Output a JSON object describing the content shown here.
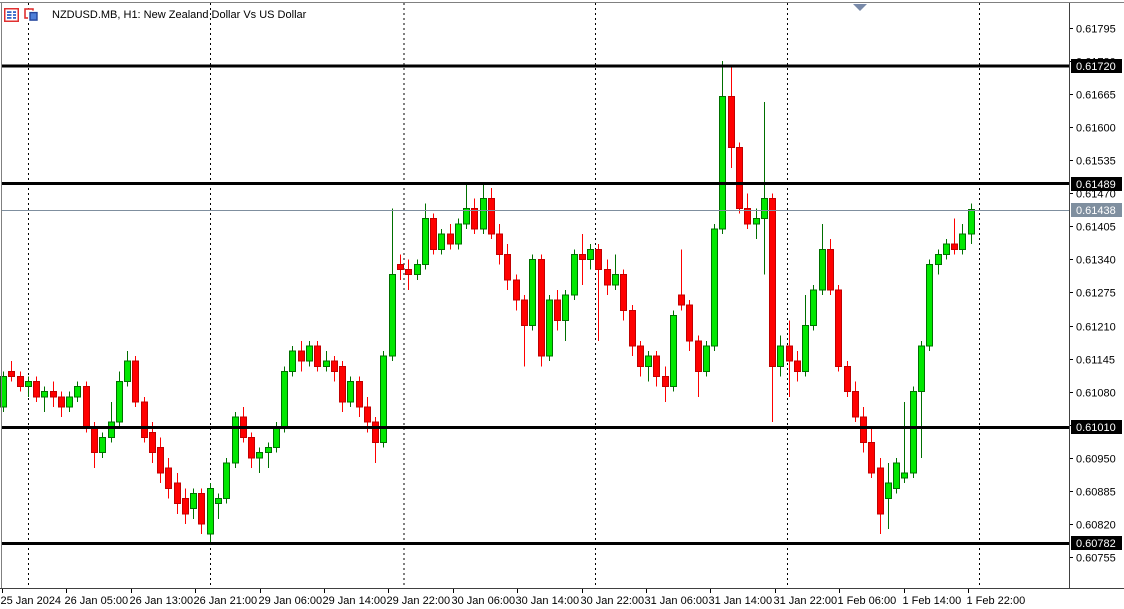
{
  "header": {
    "symbol_title": "NZDUSD.MB, H1: New Zealand Dollar Vs US Dollar",
    "icons": [
      "quotes-list-icon",
      "chart-windows-icon"
    ]
  },
  "colors": {
    "background": "#FFFFFF",
    "up_fill": "#00E800",
    "up_border": "#006F00",
    "down_fill": "#FF0000",
    "down_border": "#C00000",
    "level_line": "#000000",
    "level_tag_bg": "#000000",
    "level_tag_text": "#FFFFFF",
    "bid_line": "#7F8F9F",
    "bid_tag_bg": "#7F8F9F",
    "bid_tag_text": "#FFFFFF",
    "axis_text": "#000000",
    "separator": "#000000",
    "marker": "#7889A8",
    "border": "#808080"
  },
  "chart_data": {
    "type": "candlestick",
    "symbol": "NZDUSD.MB",
    "timeframe": "H1",
    "description": "New Zealand Dollar Vs US Dollar",
    "bars_visible": 118,
    "price_axis": {
      "ticks": [
        0.61795,
        0.6173,
        0.61665,
        0.616,
        0.61535,
        0.6147,
        0.61405,
        0.6134,
        0.61275,
        0.6121,
        0.61145,
        0.6108,
        0.61015,
        0.6095,
        0.60885,
        0.6082,
        0.60755
      ],
      "max_visible": 0.6182,
      "min_visible": 0.60715
    },
    "time_axis": {
      "labels": [
        "25 Jan 2024",
        "26 Jan 05:00",
        "26 Jan 13:00",
        "26 Jan 21:00",
        "29 Jan 06:00",
        "29 Jan 14:00",
        "29 Jan 22:00",
        "30 Jan 06:00",
        "30 Jan 14:00",
        "30 Jan 22:00",
        "31 Jan 06:00",
        "31 Jan 14:00",
        "31 Jan 22:00",
        "1 Feb 06:00",
        "1 Feb 14:00",
        "1 Feb 22:00"
      ]
    },
    "levels": [
      {
        "price": 0.6172,
        "label": "0.61720"
      },
      {
        "price": 0.61489,
        "label": "0.61489"
      },
      {
        "price": 0.6101,
        "label": "0.61010"
      },
      {
        "price": 0.60782,
        "label": "0.60782"
      }
    ],
    "bid": {
      "price": 0.61438,
      "label": "0.61438"
    },
    "day_separators": {
      "dates": [
        "26 Jan",
        "29 Jan",
        "30 Jan",
        "31 Jan",
        "1 Feb",
        "2 Feb"
      ],
      "bar_positions": [
        3.0,
        25.0,
        48.4,
        71.6,
        94.8,
        118.0
      ]
    },
    "candles": [
      [
        0.6105,
        0.6112,
        0.6104,
        0.6111
      ],
      [
        0.6112,
        0.6114,
        0.611,
        0.6111
      ],
      [
        0.6111,
        0.6112,
        0.6108,
        0.6109
      ],
      [
        0.6109,
        0.6111,
        0.6107,
        0.611
      ],
      [
        0.611,
        0.6111,
        0.6106,
        0.6107
      ],
      [
        0.6107,
        0.6109,
        0.6104,
        0.6108
      ],
      [
        0.6108,
        0.611,
        0.6105,
        0.6107
      ],
      [
        0.6107,
        0.6108,
        0.6103,
        0.6105
      ],
      [
        0.6105,
        0.6108,
        0.6104,
        0.6107
      ],
      [
        0.6107,
        0.611,
        0.6106,
        0.6109
      ],
      [
        0.6109,
        0.611,
        0.61,
        0.6101
      ],
      [
        0.6101,
        0.6102,
        0.6093,
        0.6096
      ],
      [
        0.6096,
        0.61,
        0.6095,
        0.6099
      ],
      [
        0.6099,
        0.6106,
        0.6098,
        0.6102
      ],
      [
        0.6102,
        0.6112,
        0.6101,
        0.611
      ],
      [
        0.611,
        0.6116,
        0.6109,
        0.6114
      ],
      [
        0.6114,
        0.6115,
        0.6105,
        0.6106
      ],
      [
        0.6106,
        0.6107,
        0.6098,
        0.6099
      ],
      [
        0.61,
        0.6102,
        0.6094,
        0.6096
      ],
      [
        0.6097,
        0.6099,
        0.609,
        0.6092
      ],
      [
        0.6093,
        0.6095,
        0.6087,
        0.6089
      ],
      [
        0.609,
        0.6092,
        0.6084,
        0.6086
      ],
      [
        0.6087,
        0.6089,
        0.6082,
        0.6084
      ],
      [
        0.6085,
        0.6089,
        0.6083,
        0.6088
      ],
      [
        0.6088,
        0.6089,
        0.608,
        0.6082
      ],
      [
        0.608,
        0.609,
        0.6078,
        0.6089
      ],
      [
        0.6086,
        0.6088,
        0.6083,
        0.6087
      ],
      [
        0.6087,
        0.6095,
        0.6086,
        0.6094
      ],
      [
        0.6094,
        0.6104,
        0.6093,
        0.6103
      ],
      [
        0.6103,
        0.6105,
        0.6098,
        0.6099
      ],
      [
        0.6099,
        0.61,
        0.6093,
        0.6095
      ],
      [
        0.6095,
        0.6097,
        0.6092,
        0.6096
      ],
      [
        0.6096,
        0.6098,
        0.6093,
        0.6097
      ],
      [
        0.6097,
        0.6102,
        0.6096,
        0.6101
      ],
      [
        0.6101,
        0.6113,
        0.61,
        0.6112
      ],
      [
        0.6112,
        0.6117,
        0.6111,
        0.6116
      ],
      [
        0.6116,
        0.6118,
        0.6112,
        0.6114
      ],
      [
        0.6114,
        0.6118,
        0.6113,
        0.6117
      ],
      [
        0.6117,
        0.6118,
        0.6112,
        0.6113
      ],
      [
        0.6113,
        0.6116,
        0.6112,
        0.6114
      ],
      [
        0.6114,
        0.6115,
        0.611,
        0.6112
      ],
      [
        0.6113,
        0.6114,
        0.6104,
        0.6106
      ],
      [
        0.6106,
        0.6111,
        0.6105,
        0.611
      ],
      [
        0.611,
        0.6111,
        0.6103,
        0.6105
      ],
      [
        0.6105,
        0.6107,
        0.61,
        0.6102
      ],
      [
        0.6102,
        0.6103,
        0.6094,
        0.6098
      ],
      [
        0.6098,
        0.6116,
        0.6097,
        0.6115
      ],
      [
        0.6115,
        0.6144,
        0.6114,
        0.6131
      ],
      [
        0.6133,
        0.6135,
        0.613,
        0.6132
      ],
      [
        0.6132,
        0.6134,
        0.6128,
        0.6131
      ],
      [
        0.6131,
        0.6134,
        0.613,
        0.6133
      ],
      [
        0.6133,
        0.6145,
        0.6132,
        0.6142
      ],
      [
        0.6142,
        0.6143,
        0.6135,
        0.6136
      ],
      [
        0.6136,
        0.614,
        0.6135,
        0.6139
      ],
      [
        0.6139,
        0.6141,
        0.6136,
        0.6137
      ],
      [
        0.6137,
        0.6142,
        0.6136,
        0.6141
      ],
      [
        0.6141,
        0.6149,
        0.614,
        0.6144
      ],
      [
        0.6144,
        0.6146,
        0.6139,
        0.614
      ],
      [
        0.614,
        0.6149,
        0.6139,
        0.6146
      ],
      [
        0.6146,
        0.6148,
        0.6138,
        0.6139
      ],
      [
        0.6139,
        0.6141,
        0.6133,
        0.6135
      ],
      [
        0.6135,
        0.6137,
        0.6128,
        0.613
      ],
      [
        0.613,
        0.6131,
        0.6124,
        0.6126
      ],
      [
        0.6126,
        0.6127,
        0.6113,
        0.6121
      ],
      [
        0.6121,
        0.6135,
        0.612,
        0.6134
      ],
      [
        0.6134,
        0.6135,
        0.6113,
        0.6115
      ],
      [
        0.6115,
        0.6127,
        0.6114,
        0.6126
      ],
      [
        0.6126,
        0.6128,
        0.612,
        0.6122
      ],
      [
        0.6122,
        0.6128,
        0.6118,
        0.6127
      ],
      [
        0.6127,
        0.6136,
        0.6126,
        0.6135
      ],
      [
        0.6135,
        0.6139,
        0.6129,
        0.6134
      ],
      [
        0.6134,
        0.6137,
        0.6132,
        0.6136
      ],
      [
        0.6136,
        0.6137,
        0.6118,
        0.6132
      ],
      [
        0.6132,
        0.6134,
        0.6127,
        0.6129
      ],
      [
        0.6129,
        0.6135,
        0.6128,
        0.6131
      ],
      [
        0.6131,
        0.6132,
        0.6122,
        0.6124
      ],
      [
        0.6124,
        0.6125,
        0.6115,
        0.6117
      ],
      [
        0.6117,
        0.6118,
        0.6111,
        0.6113
      ],
      [
        0.6113,
        0.6116,
        0.611,
        0.6115
      ],
      [
        0.6115,
        0.6116,
        0.6109,
        0.6111
      ],
      [
        0.6111,
        0.6113,
        0.6106,
        0.6109
      ],
      [
        0.6109,
        0.6124,
        0.6108,
        0.6123
      ],
      [
        0.6127,
        0.6136,
        0.6124,
        0.6125
      ],
      [
        0.6125,
        0.6126,
        0.6116,
        0.6118
      ],
      [
        0.6118,
        0.6119,
        0.6107,
        0.6112
      ],
      [
        0.6112,
        0.6118,
        0.6111,
        0.6117
      ],
      [
        0.6117,
        0.6141,
        0.6116,
        0.614
      ],
      [
        0.614,
        0.6173,
        0.6139,
        0.6166
      ],
      [
        0.6166,
        0.6172,
        0.6152,
        0.6156
      ],
      [
        0.6156,
        0.6157,
        0.6143,
        0.6144
      ],
      [
        0.6144,
        0.6147,
        0.614,
        0.6141
      ],
      [
        0.6141,
        0.6144,
        0.6138,
        0.6142
      ],
      [
        0.6142,
        0.6165,
        0.6131,
        0.6146
      ],
      [
        0.6146,
        0.6147,
        0.6102,
        0.6113
      ],
      [
        0.6113,
        0.6119,
        0.6111,
        0.6117
      ],
      [
        0.6117,
        0.6122,
        0.6107,
        0.6114
      ],
      [
        0.6114,
        0.6116,
        0.611,
        0.6112
      ],
      [
        0.6112,
        0.6127,
        0.6111,
        0.6121
      ],
      [
        0.6121,
        0.6129,
        0.612,
        0.6128
      ],
      [
        0.6128,
        0.6141,
        0.6127,
        0.6136
      ],
      [
        0.6136,
        0.6138,
        0.6127,
        0.6128
      ],
      [
        0.6128,
        0.6129,
        0.6112,
        0.6113
      ],
      [
        0.6113,
        0.6114,
        0.6107,
        0.6108
      ],
      [
        0.6108,
        0.611,
        0.6102,
        0.6103
      ],
      [
        0.6103,
        0.6105,
        0.6096,
        0.6098
      ],
      [
        0.6098,
        0.6101,
        0.6091,
        0.6092
      ],
      [
        0.6093,
        0.6095,
        0.608,
        0.6084
      ],
      [
        0.6087,
        0.6094,
        0.6081,
        0.609
      ],
      [
        0.6089,
        0.6095,
        0.6088,
        0.6094
      ],
      [
        0.6091,
        0.6106,
        0.609,
        0.6092
      ],
      [
        0.6092,
        0.6109,
        0.6091,
        0.6108
      ],
      [
        0.6108,
        0.6118,
        0.6095,
        0.6117
      ],
      [
        0.6117,
        0.6134,
        0.6116,
        0.6133
      ],
      [
        0.6133,
        0.6136,
        0.6131,
        0.6135
      ],
      [
        0.6135,
        0.6138,
        0.6134,
        0.6137
      ],
      [
        0.6137,
        0.6142,
        0.6135,
        0.6136
      ],
      [
        0.6136,
        0.6141,
        0.6135,
        0.6139
      ],
      [
        0.6139,
        0.6145,
        0.6137,
        0.61438
      ]
    ]
  }
}
